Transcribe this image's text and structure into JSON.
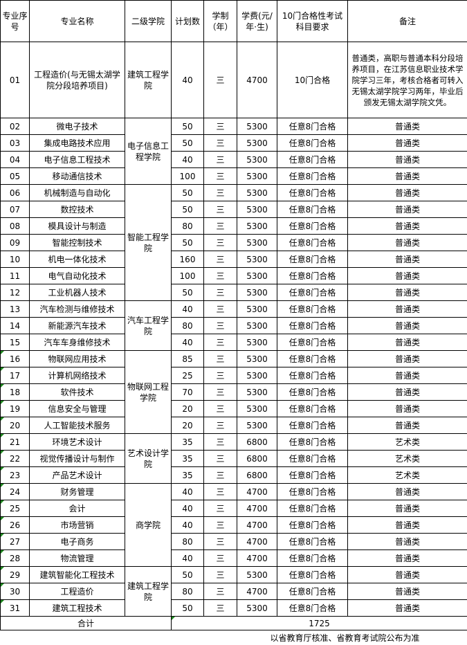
{
  "headers": [
    "专业序号",
    "专业名称",
    "二级学院",
    "计划数",
    "学制（年）",
    "学费(元/年·生)",
    "10门合格性考试科目要求",
    "备注"
  ],
  "colleges": [
    {
      "name": "建筑工程学院",
      "rows": [
        {
          "seq": "01",
          "name": "工程造价(与无锡太湖学院分段培养项目)",
          "plan": "40",
          "years": "三",
          "fee": "4700",
          "req": "10门合格",
          "note": "普通类，高职与普通本科分段培养项目，在江苏信息职业技术学院学习三年，考核合格者可转入无锡太湖学院学习两年，毕业后颁发无锡太湖学院文凭。"
        }
      ]
    },
    {
      "name": "电子信息工程学院",
      "rows": [
        {
          "seq": "02",
          "name": "微电子技术",
          "plan": "50",
          "years": "三",
          "fee": "5300",
          "req": "任意8门合格",
          "note": "普通类"
        },
        {
          "seq": "03",
          "name": "集成电路技术应用",
          "plan": "50",
          "years": "三",
          "fee": "5300",
          "req": "任意8门合格",
          "note": "普通类"
        },
        {
          "seq": "04",
          "name": "电子信息工程技术",
          "plan": "40",
          "years": "三",
          "fee": "5300",
          "req": "任意8门合格",
          "note": "普通类"
        },
        {
          "seq": "05",
          "name": "移动通信技术",
          "plan": "100",
          "years": "三",
          "fee": "5300",
          "req": "任意8门合格",
          "note": "普通类"
        }
      ]
    },
    {
      "name": "智能工程学院",
      "rows": [
        {
          "seq": "06",
          "name": "机械制造与自动化",
          "plan": "50",
          "years": "三",
          "fee": "5300",
          "req": "任意8门合格",
          "note": "普通类"
        },
        {
          "seq": "07",
          "name": "数控技术",
          "plan": "50",
          "years": "三",
          "fee": "5300",
          "req": "任意8门合格",
          "note": "普通类"
        },
        {
          "seq": "08",
          "name": "模具设计与制造",
          "plan": "80",
          "years": "三",
          "fee": "5300",
          "req": "任意8门合格",
          "note": "普通类"
        },
        {
          "seq": "09",
          "name": "智能控制技术",
          "plan": "50",
          "years": "三",
          "fee": "5300",
          "req": "任意8门合格",
          "note": "普通类"
        },
        {
          "seq": "10",
          "name": "机电一体化技术",
          "plan": "160",
          "years": "三",
          "fee": "5300",
          "req": "任意8门合格",
          "note": "普通类"
        },
        {
          "seq": "11",
          "name": "电气自动化技术",
          "plan": "100",
          "years": "三",
          "fee": "5300",
          "req": "任意8门合格",
          "note": "普通类"
        },
        {
          "seq": "12",
          "name": "工业机器人技术",
          "plan": "50",
          "years": "三",
          "fee": "5300",
          "req": "任意8门合格",
          "note": "普通类"
        }
      ]
    },
    {
      "name": "汽车工程学院",
      "rows": [
        {
          "seq": "13",
          "name": "汽车检测与维修技术",
          "plan": "40",
          "years": "三",
          "fee": "5300",
          "req": "任意8门合格",
          "note": "普通类"
        },
        {
          "seq": "14",
          "name": "新能源汽车技术",
          "plan": "80",
          "years": "三",
          "fee": "5300",
          "req": "任意8门合格",
          "note": "普通类"
        },
        {
          "seq": "15",
          "name": "汽车车身维修技术",
          "plan": "40",
          "years": "三",
          "fee": "5300",
          "req": "任意8门合格",
          "note": "普通类"
        }
      ]
    },
    {
      "name": "物联网工程学院",
      "rows": [
        {
          "seq": "16",
          "name": "物联网应用技术",
          "plan": "85",
          "years": "三",
          "fee": "5300",
          "req": "任意8门合格",
          "note": "普通类",
          "flag": true
        },
        {
          "seq": "17",
          "name": "计算机网络技术",
          "plan": "25",
          "years": "三",
          "fee": "5300",
          "req": "任意8门合格",
          "note": "普通类",
          "flag": true
        },
        {
          "seq": "18",
          "name": "软件技术",
          "plan": "70",
          "years": "三",
          "fee": "5300",
          "req": "任意8门合格",
          "note": "普通类",
          "flag": true
        },
        {
          "seq": "19",
          "name": "信息安全与管理",
          "plan": "20",
          "years": "三",
          "fee": "5300",
          "req": "任意8门合格",
          "note": "普通类",
          "flag": true
        },
        {
          "seq": "20",
          "name": "人工智能技术服务",
          "plan": "20",
          "years": "三",
          "fee": "5300",
          "req": "任意8门合格",
          "note": "普通类",
          "flag": true
        }
      ]
    },
    {
      "name": "艺术设计学院",
      "rows": [
        {
          "seq": "21",
          "name": "环境艺术设计",
          "plan": "35",
          "years": "三",
          "fee": "6800",
          "req": "任意8门合格",
          "note": "艺术类",
          "flag": true
        },
        {
          "seq": "22",
          "name": "视觉传播设计与制作",
          "plan": "35",
          "years": "三",
          "fee": "6800",
          "req": "任意8门合格",
          "note": "艺术类",
          "flag": true
        },
        {
          "seq": "23",
          "name": "产品艺术设计",
          "plan": "35",
          "years": "三",
          "fee": "6800",
          "req": "任意8门合格",
          "note": "艺术类",
          "flag": true
        }
      ]
    },
    {
      "name": "商学院",
      "rows": [
        {
          "seq": "24",
          "name": "财务管理",
          "plan": "40",
          "years": "三",
          "fee": "4700",
          "req": "任意8门合格",
          "note": "普通类",
          "flag": true
        },
        {
          "seq": "25",
          "name": "会计",
          "plan": "40",
          "years": "三",
          "fee": "4700",
          "req": "任意8门合格",
          "note": "普通类",
          "flag": true
        },
        {
          "seq": "26",
          "name": "市场营销",
          "plan": "40",
          "years": "三",
          "fee": "4700",
          "req": "任意8门合格",
          "note": "普通类",
          "flag": true
        },
        {
          "seq": "27",
          "name": "电子商务",
          "plan": "80",
          "years": "三",
          "fee": "4700",
          "req": "任意8门合格",
          "note": "普通类",
          "flag": true
        },
        {
          "seq": "28",
          "name": "物流管理",
          "plan": "40",
          "years": "三",
          "fee": "4700",
          "req": "任意8门合格",
          "note": "普通类",
          "flag": true
        }
      ]
    },
    {
      "name": "建筑工程学院",
      "rows": [
        {
          "seq": "29",
          "name": "建筑智能化工程技术",
          "plan": "50",
          "years": "三",
          "fee": "5300",
          "req": "任意8门合格",
          "note": "普通类",
          "flag": true
        },
        {
          "seq": "30",
          "name": "工程造价",
          "plan": "80",
          "years": "三",
          "fee": "4700",
          "req": "任意8门合格",
          "note": "普通类",
          "flag": true
        },
        {
          "seq": "31",
          "name": "建筑工程技术",
          "plan": "50",
          "years": "三",
          "fee": "5300",
          "req": "任意8门合格",
          "note": "普通类",
          "flag": true
        }
      ]
    }
  ],
  "total": {
    "label": "合计",
    "value": "1725"
  },
  "footnote": "以省教育厅核准、省教育考试院公布为准",
  "colors": {
    "error_flag": "#1e8a1e",
    "border": "#000000"
  }
}
